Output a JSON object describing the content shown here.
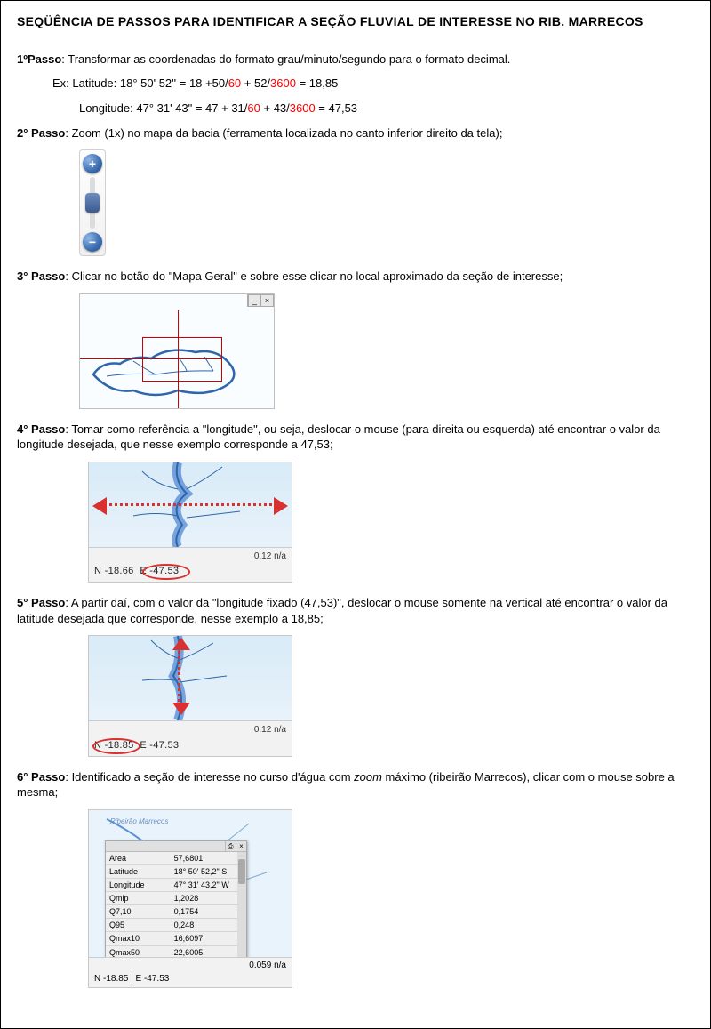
{
  "title": "SEQÜÊNCIA DE PASSOS PARA IDENTIFICAR A SEÇÃO FLUVIAL DE INTERESSE NO RIB.  MARRECOS",
  "colors": {
    "text": "#000000",
    "accent_red": "#ff0000",
    "arrow": "#d93030",
    "river": "#5a8fd6",
    "river_dark": "#2d66aa",
    "panel_bg": "#efefef"
  },
  "step1": {
    "label": "1ºPasso",
    "text": ": Transformar as coordenadas do formato grau/minuto/segundo para o formato decimal.",
    "ex_prefix": "Ex:  Latitude:  18° 50' 52''  =  18  +50/",
    "ex_d1": "60",
    "ex_mid1": "  +  52/",
    "ex_d2": "3600",
    "ex_end1": "  =  18,85",
    "lon_prefix": "Longitude:  47°  31'  43\" = 47  +  31/",
    "lon_d1": "60",
    "lon_mid": "  +  43/",
    "lon_d2": "3600",
    "lon_end": "  =  47,53"
  },
  "step2": {
    "label": "2° Passo",
    "text": ": Zoom (1x) no mapa da bacia (ferramenta localizada no canto inferior direito da tela);",
    "plus": "+",
    "minus": "−"
  },
  "step3": {
    "label": "3° Passo",
    "text": ": Clicar no botão do \"Mapa Geral\" e sobre esse clicar no local aproximado da seção de interesse;",
    "tb1": "_",
    "tb2": "×"
  },
  "step4": {
    "label": "4° Passo",
    "text": ": Tomar como referência a \"longitude\", ou seja, deslocar o mouse (para direita ou esquerda) até encontrar o valor da longitude desejada, que nesse exemplo corresponde a 47,53;",
    "scale": "0.12 n/a",
    "lat": "N -18.66",
    "lon": "E -47.53"
  },
  "step5": {
    "label": "5° Passo",
    "text": ": A partir daí, com o valor da \"longitude fixado (47,53)\", deslocar o mouse somente na vertical até encontrar o valor da latitude desejada que corresponde, nesse exemplo a 18,85;",
    "scale": "0.12 n/a",
    "lat": "N -18.85",
    "lon": "E -47.53"
  },
  "step6": {
    "label": "6° Passo",
    "text_a": ": Identificado a seção de interesse no curso d'água com ",
    "text_b": "zoom",
    "text_c": " máximo (ribeirão Marrecos), clicar com o mouse sobre a mesma;",
    "river_label": "Ribeirão Marrecos",
    "scale": "0.059 n/a",
    "coords": "N -18.85 | E -47.53",
    "rows": [
      [
        "Area",
        "57,6801"
      ],
      [
        "Latitude",
        "18° 50' 52,2\" S"
      ],
      [
        "Longitude",
        "47° 31' 43,2\" W"
      ],
      [
        "Qmlp",
        "1,2028"
      ],
      [
        "Q7,10",
        "0,1754"
      ],
      [
        "Q95",
        "0,248"
      ],
      [
        "Qmax10",
        "16,6097"
      ],
      [
        "Qmax50",
        "22,6005"
      ]
    ]
  }
}
